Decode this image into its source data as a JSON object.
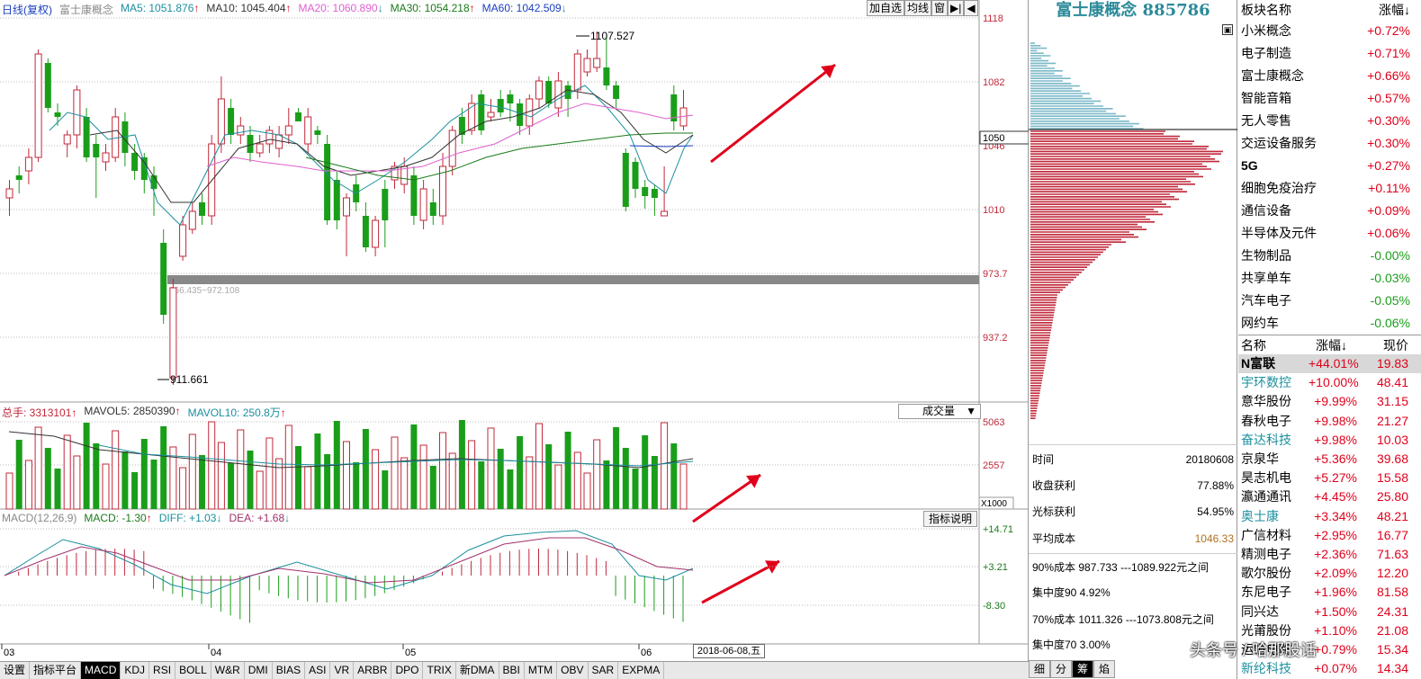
{
  "header": {
    "period": "日线(复权)",
    "index_name": "富士康概念",
    "ma5": "MA5: 1051.876",
    "ma10": "MA10: 1045.404",
    "ma20": "MA20: 1060.890",
    "ma30": "MA30: 1054.218",
    "ma60": "MA60: 1042.509",
    "ma5_arrow": "↑",
    "ma10_arrow": "↑",
    "ma20_arrow": "↓",
    "ma30_arrow": "↑",
    "ma60_arrow": "↓"
  },
  "top_buttons": [
    "加自选",
    "均线",
    "窗",
    "▶|",
    "◀"
  ],
  "price_axis": {
    "labels": [
      "1118",
      "1082",
      "1050",
      "1046",
      "1010",
      "973.7",
      "937.2"
    ],
    "current_box": "1050"
  },
  "annotations": {
    "high": "1107.527",
    "low": "911.661",
    "range": "966.435~972.108"
  },
  "volume": {
    "total": "总手: 3313101",
    "mavol5": "MAVOL5: 2850390",
    "mavol10": "MAVOL10: 250.8万",
    "select": "成交量",
    "axis": [
      "5063",
      "2557"
    ],
    "unit": "X1000"
  },
  "macd": {
    "title": "MACD(12,26,9)",
    "macd": "MACD: -1.30",
    "diff": "DIFF: +1.03",
    "dea": "DEA: +1.68",
    "button": "指标说明",
    "axis": [
      "+14.71",
      "+3.21",
      "-8.30"
    ]
  },
  "x_axis": [
    "03",
    "04",
    "05",
    "06"
  ],
  "date_tag": "2018-06-08,五",
  "bottom_tabs": [
    "设置",
    "指标平台",
    "MACD",
    "KDJ",
    "RSI",
    "BOLL",
    "W&R",
    "DMI",
    "BIAS",
    "ASI",
    "VR",
    "ARBR",
    "DPO",
    "TRIX",
    "新DMA",
    "BBI",
    "MTM",
    "OBV",
    "SAR",
    "EXPMA"
  ],
  "mid_panel": {
    "title": "富士康概念 885786",
    "stats": [
      {
        "label": "时间",
        "value": "20180608"
      },
      {
        "label": "收盘获利",
        "value": "77.88%"
      },
      {
        "label": "光标获利",
        "value": "54.95%"
      },
      {
        "label": "平均成本",
        "value": "1046.33"
      }
    ],
    "cost90": "90%成本  987.733 ---1089.922元之间",
    "conc90": "集中度90   4.92%",
    "cost70": "70%成本  1011.326 ---1073.808元之间",
    "conc70": "集中度70   3.00%",
    "tabs": [
      "细",
      "分",
      "筹",
      "焰"
    ]
  },
  "sectors": {
    "header_name": "板块名称",
    "header_change": "涨幅↓",
    "items": [
      {
        "name": "小米概念",
        "change": "+0.72%"
      },
      {
        "name": "电子制造",
        "change": "+0.71%"
      },
      {
        "name": "富士康概念",
        "change": "+0.66%"
      },
      {
        "name": "智能音箱",
        "change": "+0.57%"
      },
      {
        "name": "无人零售",
        "change": "+0.30%"
      },
      {
        "name": "交运设备服务",
        "change": "+0.30%"
      },
      {
        "name": "5G",
        "change": "+0.27%"
      },
      {
        "name": "细胞免疫治疗",
        "change": "+0.11%"
      },
      {
        "name": "通信设备",
        "change": "+0.09%"
      },
      {
        "name": "半导体及元件",
        "change": "+0.06%"
      },
      {
        "name": "生物制品",
        "change": "-0.00%"
      },
      {
        "name": "共享单车",
        "change": "-0.03%"
      },
      {
        "name": "汽车电子",
        "change": "-0.05%"
      },
      {
        "name": "网约车",
        "change": "-0.06%"
      }
    ]
  },
  "stocks": {
    "header_name": "名称",
    "header_change": "涨幅↓",
    "header_price": "现价",
    "items": [
      {
        "name": "N富联",
        "change": "+44.01%",
        "price": "19.83",
        "highlight": true
      },
      {
        "name": "宇环数控",
        "change": "+10.00%",
        "price": "48.41",
        "teal": true
      },
      {
        "name": "意华股份",
        "change": "+9.99%",
        "price": "31.15"
      },
      {
        "name": "春秋电子",
        "change": "+9.98%",
        "price": "21.27"
      },
      {
        "name": "奋达科技",
        "change": "+9.98%",
        "price": "10.03",
        "teal": true
      },
      {
        "name": "京泉华",
        "change": "+5.36%",
        "price": "39.68"
      },
      {
        "name": "昊志机电",
        "change": "+5.27%",
        "price": "15.58"
      },
      {
        "name": "瀛通通讯",
        "change": "+4.45%",
        "price": "25.80"
      },
      {
        "name": "奥士康",
        "change": "+3.34%",
        "price": "48.21",
        "teal": true
      },
      {
        "name": "广信材料",
        "change": "+2.95%",
        "price": "16.77"
      },
      {
        "name": "精测电子",
        "change": "+2.36%",
        "price": "71.63"
      },
      {
        "name": "歌尔股份",
        "change": "+2.09%",
        "price": "12.20"
      },
      {
        "name": "东尼电子",
        "change": "+1.96%",
        "price": "81.58"
      },
      {
        "name": "同兴达",
        "change": "+1.50%",
        "price": "24.31"
      },
      {
        "name": "光莆股份",
        "change": "+1.10%",
        "price": "21.08"
      },
      {
        "name": "运恒电路",
        "change": "+0.79%",
        "price": "15.34"
      },
      {
        "name": "新纶科技",
        "change": "+0.07%",
        "price": "14.34",
        "teal": true
      }
    ]
  },
  "watermark": "头条号 / 哈那股话",
  "colors": {
    "up": "#c0283a",
    "down": "#1a9e1a",
    "teal": "#1a8f9e",
    "red": "#e0001b"
  }
}
